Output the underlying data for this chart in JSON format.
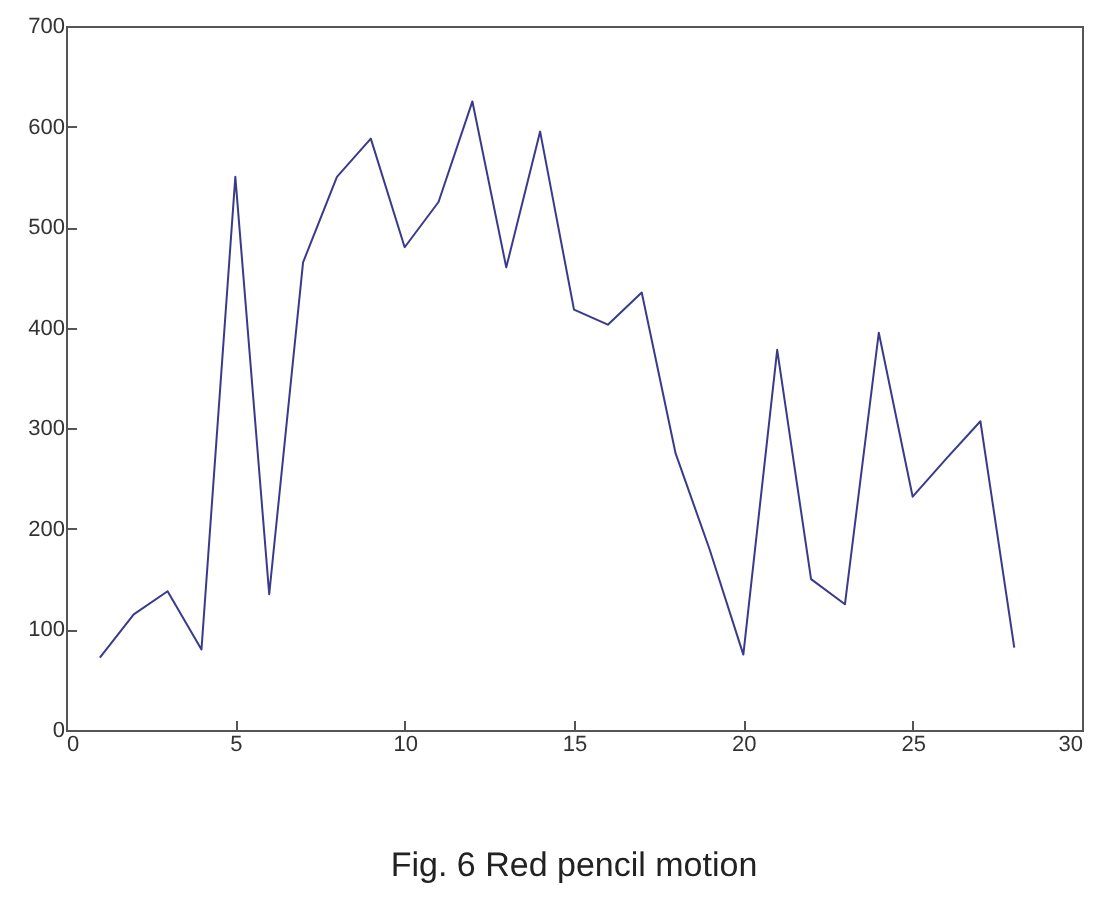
{
  "chart_data": {
    "type": "line",
    "title": "Fig. 6 Red pencil motion",
    "x": [
      1,
      2,
      3,
      4,
      5,
      6,
      7,
      8,
      9,
      10,
      11,
      12,
      13,
      14,
      15,
      16,
      17,
      18,
      19,
      20,
      21,
      22,
      23,
      24,
      25,
      26,
      27,
      28
    ],
    "series": [
      {
        "color": "#3a3a8c",
        "values": [
          72,
          115,
          138,
          80,
          550,
          135,
          465,
          550,
          588,
          480,
          525,
          625,
          460,
          595,
          418,
          403,
          435,
          275,
          180,
          75,
          378,
          150,
          125,
          395,
          232,
          270,
          307,
          82
        ]
      }
    ],
    "xlim": [
      0,
      30
    ],
    "xticks": [
      0,
      5,
      10,
      15,
      20,
      25,
      30
    ],
    "ylim": [
      0,
      700
    ],
    "yticks": [
      0,
      100,
      200,
      300,
      400,
      500,
      600,
      700
    ],
    "grid": false,
    "marker": "none",
    "line_style": "solid"
  }
}
